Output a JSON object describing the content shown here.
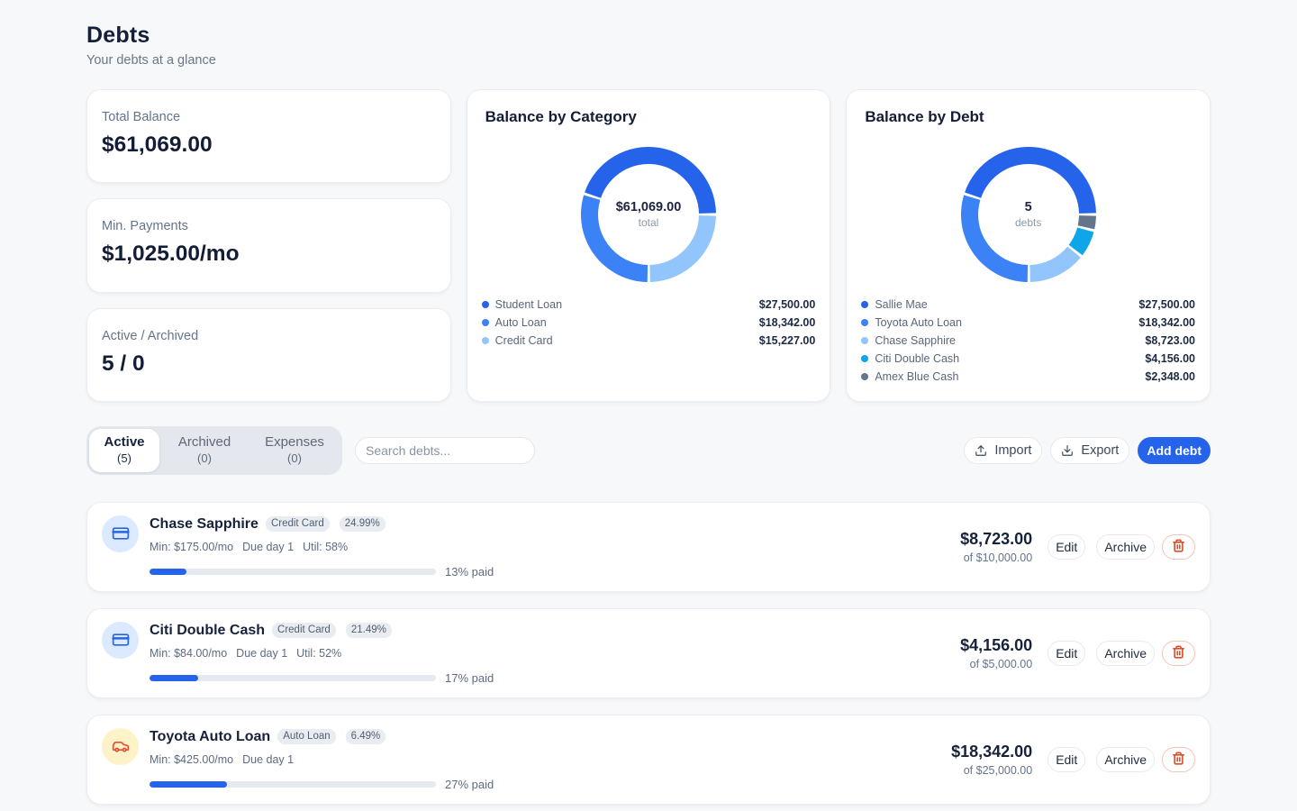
{
  "page": {
    "title": "Debts",
    "subtitle": "Your debts at a glance"
  },
  "stats": [
    {
      "label": "Total Balance",
      "value": "$61,069.00"
    },
    {
      "label": "Min. Payments",
      "value": "$1,025.00/mo"
    },
    {
      "label": "Active / Archived",
      "value": "5 / 0"
    }
  ],
  "chart_data": [
    {
      "type": "pie",
      "title": "Balance by Category",
      "center_value": "$61,069.00",
      "center_label": "total",
      "start_angle_deg": 90,
      "direction": "ccw",
      "pad_deg": 2.4,
      "outer_radius": 75,
      "inner_radius": 56,
      "segments": [
        {
          "label": "Student Loan",
          "value": 27500,
          "display": "$27,500.00",
          "color": "#2563eb"
        },
        {
          "label": "Auto Loan",
          "value": 18342,
          "display": "$18,342.00",
          "color": "#3b82f6"
        },
        {
          "label": "Credit Card",
          "value": 15227,
          "display": "$15,227.00",
          "color": "#93c5fd"
        }
      ]
    },
    {
      "type": "pie",
      "title": "Balance by Debt",
      "center_value": "5",
      "center_label": "debts",
      "start_angle_deg": 90,
      "direction": "ccw",
      "pad_deg": 2.4,
      "outer_radius": 75,
      "inner_radius": 56,
      "segments": [
        {
          "label": "Sallie Mae",
          "value": 27500,
          "display": "$27,500.00",
          "color": "#2563eb"
        },
        {
          "label": "Toyota Auto Loan",
          "value": 18342,
          "display": "$18,342.00",
          "color": "#3b82f6"
        },
        {
          "label": "Chase Sapphire",
          "value": 8723,
          "display": "$8,723.00",
          "color": "#93c5fd"
        },
        {
          "label": "Citi Double Cash",
          "value": 4156,
          "display": "$4,156.00",
          "color": "#0ea5e9"
        },
        {
          "label": "Amex Blue Cash",
          "value": 2348,
          "display": "$2,348.00",
          "color": "#64748b"
        }
      ]
    }
  ],
  "toolbar": {
    "tabs": [
      {
        "label": "Active",
        "count": "(5)",
        "active": true
      },
      {
        "label": "Archived",
        "count": "(0)",
        "active": false
      },
      {
        "label": "Expenses",
        "count": "(0)",
        "active": false
      }
    ],
    "search_placeholder": "Search debts...",
    "import_label": "Import",
    "export_label": "Export",
    "add_label": "Add debt"
  },
  "debts": [
    {
      "name": "Chase Sapphire",
      "type_badge": "Credit Card",
      "apr_badge": "24.99%",
      "icon": "credit-card",
      "meta": [
        "Min: $175.00/mo",
        "Due day 1",
        "Util: 58%"
      ],
      "progress_pct": 13,
      "progress_label": "13% paid",
      "amount": "$8,723.00",
      "amount_sub": "of $10,000.00",
      "edit_label": "Edit",
      "archive_label": "Archive"
    },
    {
      "name": "Citi Double Cash",
      "type_badge": "Credit Card",
      "apr_badge": "21.49%",
      "icon": "credit-card",
      "meta": [
        "Min: $84.00/mo",
        "Due day 1",
        "Util: 52%"
      ],
      "progress_pct": 17,
      "progress_label": "17% paid",
      "amount": "$4,156.00",
      "amount_sub": "of $5,000.00",
      "edit_label": "Edit",
      "archive_label": "Archive"
    },
    {
      "name": "Toyota Auto Loan",
      "type_badge": "Auto Loan",
      "apr_badge": "6.49%",
      "icon": "car",
      "meta": [
        "Min: $425.00/mo",
        "Due day 1"
      ],
      "progress_pct": 27,
      "progress_label": "27% paid",
      "amount": "$18,342.00",
      "amount_sub": "of $25,000.00",
      "edit_label": "Edit",
      "archive_label": "Archive"
    }
  ],
  "colors": {
    "accent": "#2563eb",
    "danger": "#d94f2b",
    "card_icon_credit": "#2563eb",
    "card_icon_car": "#e2502e"
  }
}
